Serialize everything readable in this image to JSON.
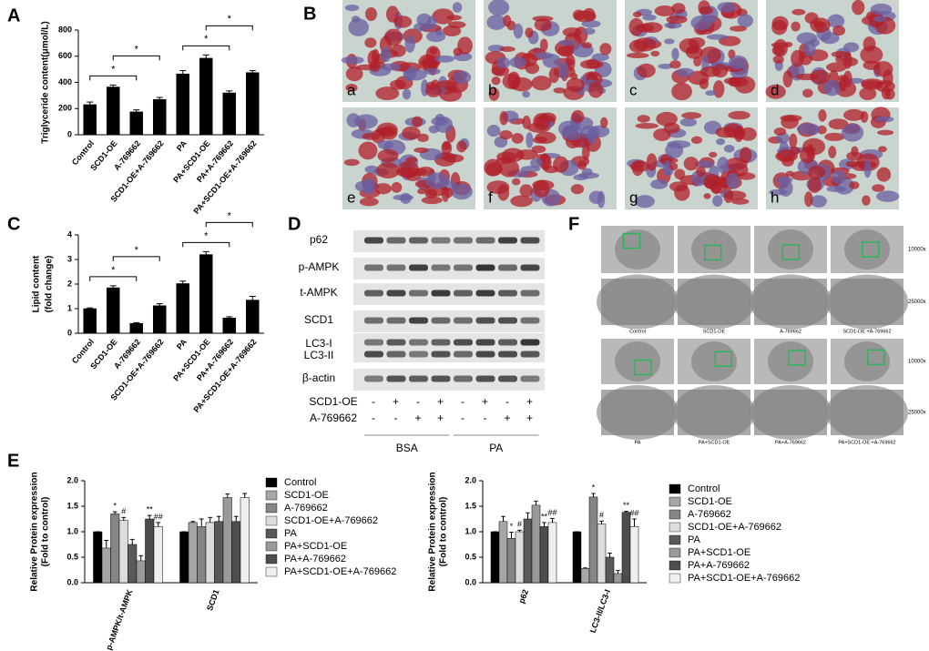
{
  "panel_labels": [
    "A",
    "B",
    "C",
    "D",
    "E",
    "F"
  ],
  "chart_data": [
    {
      "type": "bar",
      "ylabel": [
        "Triglyceride content(μmol/L)"
      ],
      "categories": [
        "Control",
        "SCD1-OE",
        "A-769662",
        "SCD1-OE+A-769662",
        "PA",
        "PA+SCD1-OE",
        "PA+A-769662",
        "PA+SCD1-OE+A-769662"
      ],
      "values": [
        230,
        365,
        175,
        270,
        465,
        585,
        320,
        475
      ],
      "errors": [
        20,
        15,
        15,
        15,
        25,
        25,
        15,
        15
      ],
      "color": "#000000",
      "ylim": [
        0,
        800
      ],
      "yticks": [
        0,
        200,
        400,
        600,
        800
      ],
      "brackets": [
        {
          "from": 0,
          "to": 2,
          "label": "*"
        },
        {
          "from": 1,
          "to": 3,
          "label": "*"
        },
        {
          "from": 4,
          "to": 6,
          "label": "*"
        },
        {
          "from": 5,
          "to": 7,
          "label": "*"
        }
      ]
    },
    {
      "type": "bar",
      "ylabel": [
        "Lipid content",
        "(fold change)"
      ],
      "categories": [
        "Control",
        "SCD1-OE",
        "A-769662",
        "SCD1-OE+A-769662",
        "PA",
        "PA+SCD1-OE",
        "PA+A-769662",
        "PA+SCD1-OE+A-769662"
      ],
      "values": [
        1.0,
        1.85,
        0.4,
        1.12,
        2.02,
        3.2,
        0.62,
        1.35
      ],
      "errors": [
        0.03,
        0.08,
        0.03,
        0.08,
        0.1,
        0.12,
        0.05,
        0.15
      ],
      "color": "#000000",
      "ylim": [
        0,
        4
      ],
      "yticks": [
        0,
        1,
        2,
        3,
        4
      ],
      "brackets": [
        {
          "from": 0,
          "to": 2,
          "label": "*"
        },
        {
          "from": 1,
          "to": 3,
          "label": "*"
        },
        {
          "from": 4,
          "to": 6,
          "label": "*"
        },
        {
          "from": 5,
          "to": 7,
          "label": "*"
        }
      ]
    },
    {
      "type": "bar",
      "ylabel": [
        "Relative Protein expression",
        "(Fold to control)"
      ],
      "categories": [
        "p-AMPK/t-AMPK",
        "SCD1"
      ],
      "ylim": [
        0,
        2.0
      ],
      "yticks": [
        {
          "value": 0,
          "label": "0.0"
        },
        0.5,
        {
          "value": 1,
          "label": "1.0"
        },
        1.5,
        {
          "value": 2,
          "label": "2.0"
        }
      ],
      "series": [
        {
          "name": "Control",
          "color": "#000000",
          "values": [
            1.0,
            1.0
          ],
          "errors": [
            0,
            0
          ],
          "sig": [
            null,
            null
          ]
        },
        {
          "name": "SCD1-OE",
          "color": "#a6a6a6",
          "values": [
            0.68,
            1.18
          ],
          "errors": [
            0.15,
            0.02
          ],
          "sig": [
            null,
            null
          ]
        },
        {
          "name": "A-769662",
          "color": "#858585",
          "values": [
            1.35,
            1.1
          ],
          "errors": [
            0.04,
            0.15
          ],
          "sig": [
            "*",
            null
          ]
        },
        {
          "name": "SCD1-OE+A-769662",
          "color": "#dcdcdc",
          "values": [
            1.22,
            1.18
          ],
          "errors": [
            0.06,
            0.1
          ],
          "sig": [
            "#",
            null
          ]
        },
        {
          "name": "PA",
          "color": "#595959",
          "values": [
            0.75,
            1.2
          ],
          "errors": [
            0.1,
            0.1
          ],
          "sig": [
            null,
            null
          ]
        },
        {
          "name": "PA+SCD1-OE",
          "color": "#9a9a9a",
          "values": [
            0.43,
            1.67
          ],
          "errors": [
            0.1,
            0.07
          ],
          "sig": [
            null,
            null
          ]
        },
        {
          "name": "PA+A-769662",
          "color": "#4d4d4d",
          "values": [
            1.25,
            1.2
          ],
          "errors": [
            0.07,
            0.1
          ],
          "sig": [
            "**",
            null
          ]
        },
        {
          "name": "PA+SCD1-OE+A-769662",
          "color": "#efefef",
          "values": [
            1.1,
            1.67
          ],
          "errors": [
            0.08,
            0.08
          ],
          "sig": [
            "##",
            null
          ]
        }
      ]
    },
    {
      "type": "bar",
      "ylabel": [
        "Relative Protein expression",
        "(Fold to control)"
      ],
      "categories": [
        "p62",
        "LC3-II/LC3-I"
      ],
      "ylim": [
        0,
        2.0
      ],
      "yticks": [
        {
          "value": 0,
          "label": "0.0"
        },
        0.5,
        {
          "value": 1,
          "label": "1.0"
        },
        1.5,
        {
          "value": 2,
          "label": "2.0"
        }
      ],
      "series": [
        {
          "name": "Control",
          "color": "#000000",
          "values": [
            1.0,
            1.0
          ],
          "errors": [
            0,
            0
          ],
          "sig": [
            null,
            null
          ]
        },
        {
          "name": "SCD1-OE",
          "color": "#a6a6a6",
          "values": [
            1.2,
            0.28
          ],
          "errors": [
            0.1,
            0.01
          ],
          "sig": [
            null,
            null
          ]
        },
        {
          "name": "A-769662",
          "color": "#858585",
          "values": [
            0.87,
            1.68
          ],
          "errors": [
            0.12,
            0.07
          ],
          "sig": [
            "*",
            "*"
          ]
        },
        {
          "name": "SCD1-OE+A-769662",
          "color": "#dcdcdc",
          "values": [
            1.0,
            1.15
          ],
          "errors": [
            0.03,
            0.06
          ],
          "sig": [
            "#",
            "#"
          ]
        },
        {
          "name": "PA",
          "color": "#595959",
          "values": [
            1.25,
            0.5
          ],
          "errors": [
            0.12,
            0.08
          ],
          "sig": [
            null,
            null
          ]
        },
        {
          "name": "PA+SCD1-OE",
          "color": "#9a9a9a",
          "values": [
            1.52,
            0.18
          ],
          "errors": [
            0.08,
            0.06
          ],
          "sig": [
            null,
            null
          ]
        },
        {
          "name": "PA+A-769662",
          "color": "#4d4d4d",
          "values": [
            1.1,
            1.38
          ],
          "errors": [
            0.08,
            0.02
          ],
          "sig": [
            "**",
            "**"
          ]
        },
        {
          "name": "PA+SCD1-OE+A-769662",
          "color": "#efefef",
          "values": [
            1.18,
            1.1
          ],
          "errors": [
            0.08,
            0.15
          ],
          "sig": [
            "##",
            "##"
          ]
        }
      ]
    }
  ],
  "stain_images": [
    "a",
    "b",
    "c",
    "d",
    "e",
    "f",
    "g",
    "h"
  ],
  "western_blot": {
    "rows": [
      "p62",
      "p-AMPK",
      "t-AMPK",
      "SCD1",
      "LC3-I",
      "LC3-II",
      "β-actin"
    ],
    "treatments": [
      {
        "name": "SCD1-OE",
        "signs": [
          "-",
          "+",
          "-",
          "+",
          "-",
          "+",
          "-",
          "+"
        ]
      },
      {
        "name": "A-769662",
        "signs": [
          "-",
          "-",
          "+",
          "+",
          "-",
          "-",
          "+",
          "+"
        ]
      }
    ],
    "groups": [
      "BSA",
      "PA"
    ]
  },
  "tem": {
    "magnifications": [
      "10000x",
      "25000x",
      "10000x",
      "25000x"
    ],
    "captions": [
      [
        "Control",
        "SCD1-OE",
        "A-769662",
        "SCD1-OE +A-769662"
      ],
      [
        "PA",
        "PA+SCD1-OE",
        "PA+A-769662",
        "PA+SCD1-OE +A-769662"
      ]
    ]
  }
}
